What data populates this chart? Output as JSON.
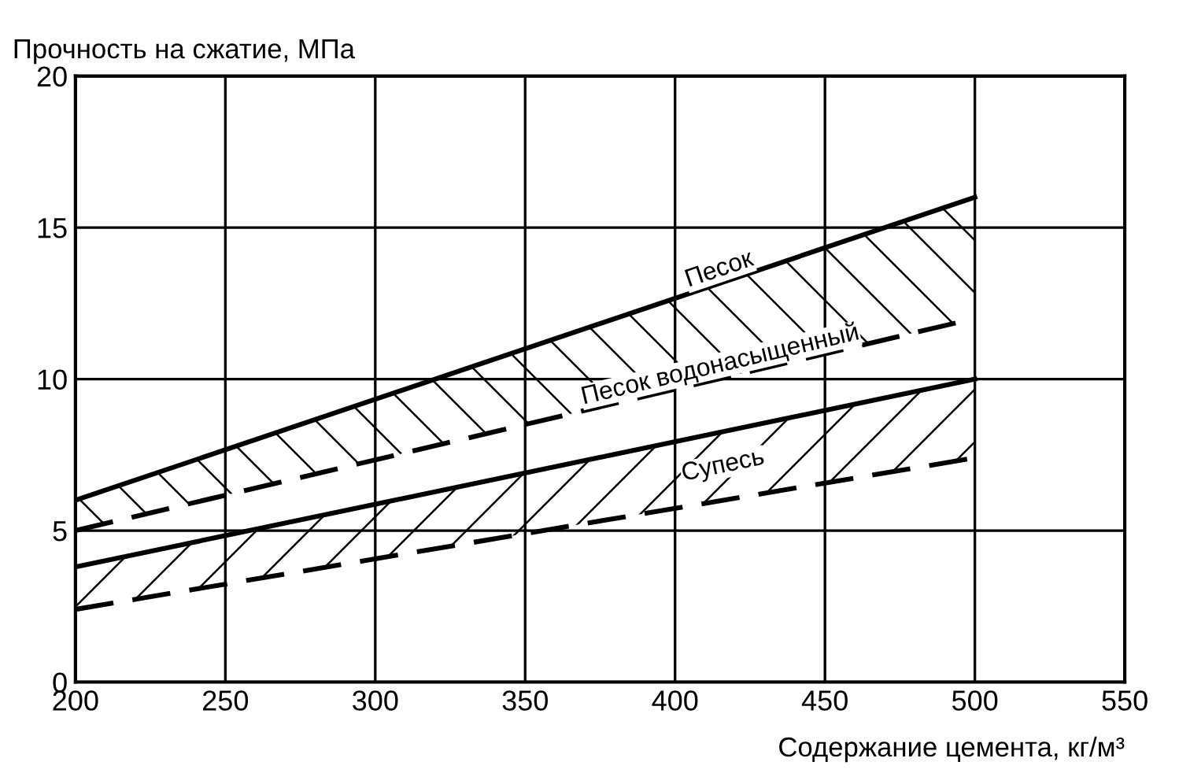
{
  "chart_data": {
    "type": "line",
    "xlabel": "Содержание цемента, кг/м³",
    "ylabel": "Прочность на сжатие, МПа",
    "x": [
      200,
      500
    ],
    "series": [
      {
        "name": "Песок",
        "color": "#000000",
        "values": [
          6,
          16
        ],
        "line_style": "solid",
        "lower": [
          5,
          12
        ],
        "upper": [
          6,
          16
        ]
      },
      {
        "name": "Песок водонасыщенный",
        "color": "#000000",
        "values": [
          5,
          12
        ],
        "line_style": "dashed"
      },
      {
        "name": "Супесь",
        "color": "#000000",
        "values": [
          3.8,
          10
        ],
        "line_style": "solid",
        "lower": [
          2.4,
          7.4
        ],
        "upper": [
          3.8,
          10
        ]
      },
      {
        "color": "#000000",
        "values": [
          2.4,
          7.4
        ],
        "line_style": "dashed"
      }
    ],
    "xlim": [
      200,
      550
    ],
    "ylim": [
      0,
      20
    ],
    "xticks": [
      200,
      250,
      300,
      350,
      400,
      450,
      500,
      550
    ],
    "yticks": [
      0,
      5,
      10,
      15,
      20
    ],
    "grid": true,
    "legend": false
  }
}
